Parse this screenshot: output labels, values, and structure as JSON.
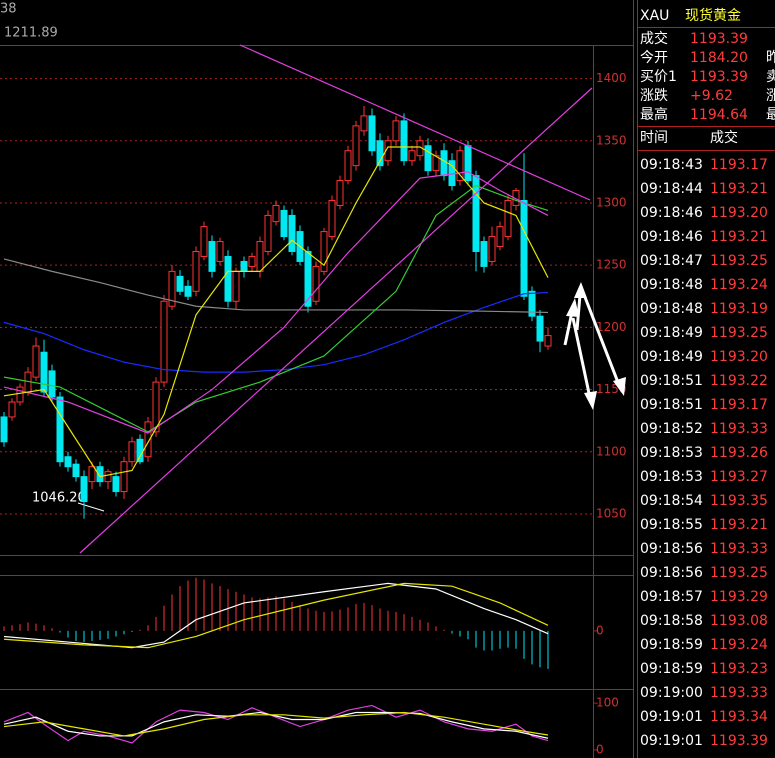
{
  "chart_data": [
    {
      "type": "candlestick",
      "legend_values": [
        "38",
        "1211.89"
      ],
      "annotations": [
        "1046.20"
      ],
      "up_color": "#ff3232",
      "down_color": "#00e8f0",
      "open": [
        1128,
        1128,
        1140,
        1148,
        1160,
        1180,
        1165,
        1144,
        1096,
        1090,
        1080,
        1076,
        1088,
        1076,
        1080,
        1068,
        1092,
        1110,
        1096,
        1116,
        1156,
        1217,
        1241,
        1233,
        1229,
        1257,
        1269,
        1253,
        1257,
        1221,
        1253,
        1249,
        1245,
        1261,
        1285,
        1294,
        1290,
        1277,
        1261,
        1221,
        1245,
        1273,
        1298,
        1318,
        1330,
        1358,
        1370,
        1350,
        1334,
        1350,
        1366,
        1334,
        1338,
        1346,
        1326,
        1342,
        1334,
        1318,
        1346,
        1322,
        1269,
        1253,
        1265,
        1273,
        1298,
        1302,
        1229,
        1209,
        1185
      ],
      "high": [
        1132,
        1143,
        1155,
        1168,
        1192,
        1190,
        1170,
        1148,
        1100,
        1094,
        1085,
        1092,
        1092,
        1086,
        1084,
        1096,
        1112,
        1114,
        1128,
        1160,
        1226,
        1250,
        1246,
        1238,
        1265,
        1285,
        1274,
        1272,
        1262,
        1248,
        1257,
        1260,
        1273,
        1294,
        1302,
        1298,
        1295,
        1282,
        1265,
        1253,
        1280,
        1306,
        1322,
        1346,
        1366,
        1378,
        1376,
        1356,
        1354,
        1370,
        1372,
        1346,
        1354,
        1352,
        1342,
        1348,
        1340,
        1346,
        1350,
        1326,
        1273,
        1281,
        1285,
        1306,
        1312,
        1340,
        1233,
        1214,
        1200
      ],
      "low": [
        1104,
        1125,
        1137,
        1145,
        1157,
        1145,
        1140,
        1088,
        1084,
        1076,
        1046.2,
        1070,
        1072,
        1070,
        1064,
        1062,
        1088,
        1090,
        1092,
        1112,
        1152,
        1214,
        1226,
        1222,
        1225,
        1254,
        1240,
        1250,
        1216,
        1215,
        1240,
        1245,
        1240,
        1258,
        1282,
        1270,
        1258,
        1250,
        1212,
        1218,
        1242,
        1270,
        1295,
        1315,
        1326,
        1354,
        1338,
        1326,
        1330,
        1346,
        1330,
        1330,
        1334,
        1322,
        1322,
        1318,
        1310,
        1314,
        1314,
        1245,
        1244,
        1250,
        1262,
        1270,
        1294,
        1222,
        1205,
        1180,
        1182
      ],
      "close": [
        1108,
        1140,
        1152,
        1164,
        1185,
        1148,
        1144,
        1092,
        1088,
        1080,
        1060,
        1088,
        1076,
        1084,
        1068,
        1092,
        1108,
        1092,
        1124,
        1156,
        1221,
        1245,
        1229,
        1225,
        1261,
        1281,
        1245,
        1269,
        1221,
        1245,
        1245,
        1257,
        1269,
        1290,
        1298,
        1273,
        1261,
        1253,
        1217,
        1249,
        1277,
        1302,
        1318,
        1342,
        1362,
        1370,
        1342,
        1330,
        1350,
        1366,
        1334,
        1342,
        1350,
        1326,
        1338,
        1322,
        1314,
        1342,
        1318,
        1261,
        1249,
        1273,
        1281,
        1302,
        1310,
        1225,
        1209,
        1189,
        1193.39
      ],
      "lines": [
        {
          "color": "#1a2cff",
          "x": [
            0,
            5,
            10,
            15,
            20,
            25,
            30,
            35,
            40,
            45,
            50,
            55,
            60,
            65,
            68
          ],
          "values": [
            1204,
            1195,
            1182,
            1172,
            1166,
            1164,
            1164,
            1166,
            1170,
            1178,
            1190,
            1204,
            1216,
            1227,
            1228
          ]
        },
        {
          "color": "#8a8a8a",
          "x": [
            0,
            6,
            12,
            18,
            24,
            30,
            40,
            50,
            60,
            68
          ],
          "values": [
            1255,
            1245,
            1236,
            1226,
            1217,
            1214,
            1214,
            1214,
            1213,
            1212
          ]
        },
        {
          "color": "#33cc33",
          "x": [
            0,
            7,
            18,
            24,
            32,
            40,
            49,
            54,
            59,
            64,
            68
          ],
          "values": [
            1160,
            1152,
            1116,
            1140,
            1156,
            1177,
            1229,
            1290,
            1314,
            1302,
            1294
          ]
        },
        {
          "color": "#e040e0",
          "x": [
            0,
            8,
            18,
            26,
            35,
            43,
            52,
            58,
            62,
            68
          ],
          "values": [
            1152,
            1140,
            1115,
            1150,
            1200,
            1260,
            1320,
            1325,
            1310,
            1290
          ]
        },
        {
          "color": "#e6e600",
          "x": [
            0,
            5,
            8,
            12,
            16,
            20,
            24,
            28,
            32,
            36,
            40,
            44,
            48,
            52,
            56,
            60,
            64,
            68
          ],
          "values": [
            1145,
            1150,
            1120,
            1080,
            1085,
            1130,
            1210,
            1245,
            1245,
            1270,
            1250,
            1300,
            1345,
            1345,
            1330,
            1300,
            1290,
            1240
          ]
        }
      ],
      "ylim": [
        1017,
        1427
      ],
      "yticks": [
        1400,
        1350,
        1300,
        1250,
        1200,
        1150,
        1100,
        1050
      ],
      "grid": true
    },
    {
      "type": "bar",
      "up_color": "#ff3232",
      "down_color": "#00e8f0",
      "values": [
        0.8,
        1.0,
        1.2,
        1.5,
        1.3,
        1.0,
        0.5,
        -0.3,
        -1.2,
        -1.8,
        -2.0,
        -1.8,
        -1.6,
        -1.4,
        -1.0,
        -0.6,
        -0.2,
        0.2,
        1.0,
        2.5,
        4.5,
        6.5,
        8.0,
        9.0,
        9.5,
        9.2,
        8.5,
        8.0,
        7.5,
        7.0,
        6.5,
        6.0,
        5.8,
        6.0,
        6.2,
        5.8,
        5.2,
        4.6,
        4.0,
        3.6,
        3.4,
        3.5,
        3.8,
        4.2,
        4.8,
        5.0,
        4.6,
        4.0,
        3.6,
        3.4,
        3.0,
        2.5,
        2.0,
        1.5,
        0.8,
        0.2,
        -0.5,
        -1.0,
        -1.5,
        -3.0,
        -3.5,
        -3.5,
        -3.2,
        -3.0,
        -3.2,
        -5.0,
        -6.0,
        -6.5,
        -6.8
      ],
      "lines": [
        {
          "color": "#ffffff",
          "x": [
            0,
            8,
            16,
            20,
            24,
            30,
            40,
            48,
            54,
            60,
            64,
            68
          ],
          "values": [
            -1,
            -2,
            -3,
            -2,
            2,
            5,
            7,
            8.5,
            7.5,
            4,
            2,
            -0.5
          ]
        },
        {
          "color": "#e6e600",
          "x": [
            0,
            10,
            18,
            24,
            30,
            40,
            50,
            56,
            62,
            68
          ],
          "values": [
            -1.5,
            -2.5,
            -3,
            -1,
            2,
            5.5,
            8.5,
            8,
            5,
            1
          ]
        }
      ],
      "ylim": [
        -7,
        10
      ],
      "yticks": [
        0
      ]
    },
    {
      "type": "line",
      "lines": [
        {
          "color": "#e040e0",
          "x": [
            0,
            3,
            5,
            8,
            10,
            13,
            16,
            19,
            22,
            25,
            28,
            31,
            34,
            37,
            40,
            43,
            46,
            49,
            52,
            55,
            58,
            61,
            64,
            66,
            68
          ],
          "values": [
            60,
            80,
            55,
            20,
            40,
            30,
            15,
            60,
            85,
            80,
            65,
            90,
            70,
            50,
            65,
            85,
            95,
            70,
            85,
            60,
            45,
            40,
            55,
            30,
            20
          ]
        },
        {
          "color": "#ffffff",
          "x": [
            0,
            4,
            8,
            12,
            16,
            20,
            24,
            28,
            32,
            36,
            40,
            44,
            48,
            52,
            56,
            60,
            64,
            68
          ],
          "values": [
            55,
            70,
            40,
            30,
            30,
            60,
            75,
            72,
            80,
            65,
            65,
            80,
            80,
            78,
            60,
            45,
            40,
            25
          ]
        },
        {
          "color": "#e6e600",
          "x": [
            0,
            5,
            10,
            15,
            20,
            25,
            30,
            35,
            40,
            45,
            50,
            55,
            60,
            65,
            68
          ],
          "values": [
            50,
            60,
            45,
            30,
            45,
            65,
            75,
            75,
            68,
            75,
            80,
            70,
            55,
            40,
            32
          ]
        }
      ],
      "ylim": [
        -15,
        128
      ],
      "yticks": [
        0,
        100
      ]
    }
  ],
  "quote": {
    "symbol": "XAU",
    "name": "现货黄金",
    "fields": [
      {
        "label": "成交",
        "value": "1193.39"
      },
      {
        "label": "今开",
        "value": "1184.20",
        "side": "昨"
      },
      {
        "label": "买价1",
        "value": "1193.39",
        "side": "卖"
      },
      {
        "label": "涨跌",
        "value": "+9.62",
        "side": "涨"
      },
      {
        "label": "最高",
        "value": "1194.64",
        "side": "最"
      }
    ],
    "ticks_header": [
      "时间",
      "成交"
    ],
    "ticks": [
      [
        "09:18:43",
        "1193.17"
      ],
      [
        "09:18:44",
        "1193.21"
      ],
      [
        "09:18:46",
        "1193.20"
      ],
      [
        "09:18:46",
        "1193.21"
      ],
      [
        "09:18:47",
        "1193.25"
      ],
      [
        "09:18:48",
        "1193.24"
      ],
      [
        "09:18:48",
        "1193.19"
      ],
      [
        "09:18:49",
        "1193.25"
      ],
      [
        "09:18:49",
        "1193.20"
      ],
      [
        "09:18:51",
        "1193.22"
      ],
      [
        "09:18:51",
        "1193.17"
      ],
      [
        "09:18:52",
        "1193.33"
      ],
      [
        "09:18:53",
        "1193.26"
      ],
      [
        "09:18:53",
        "1193.27"
      ],
      [
        "09:18:54",
        "1193.35"
      ],
      [
        "09:18:55",
        "1193.21"
      ],
      [
        "09:18:56",
        "1193.33"
      ],
      [
        "09:18:56",
        "1193.25"
      ],
      [
        "09:18:57",
        "1193.29"
      ],
      [
        "09:18:58",
        "1193.08"
      ],
      [
        "09:18:59",
        "1193.24"
      ],
      [
        "09:18:59",
        "1193.23"
      ],
      [
        "09:19:00",
        "1193.33"
      ],
      [
        "09:19:01",
        "1193.34"
      ],
      [
        "09:19:01",
        "1193.39"
      ]
    ]
  }
}
